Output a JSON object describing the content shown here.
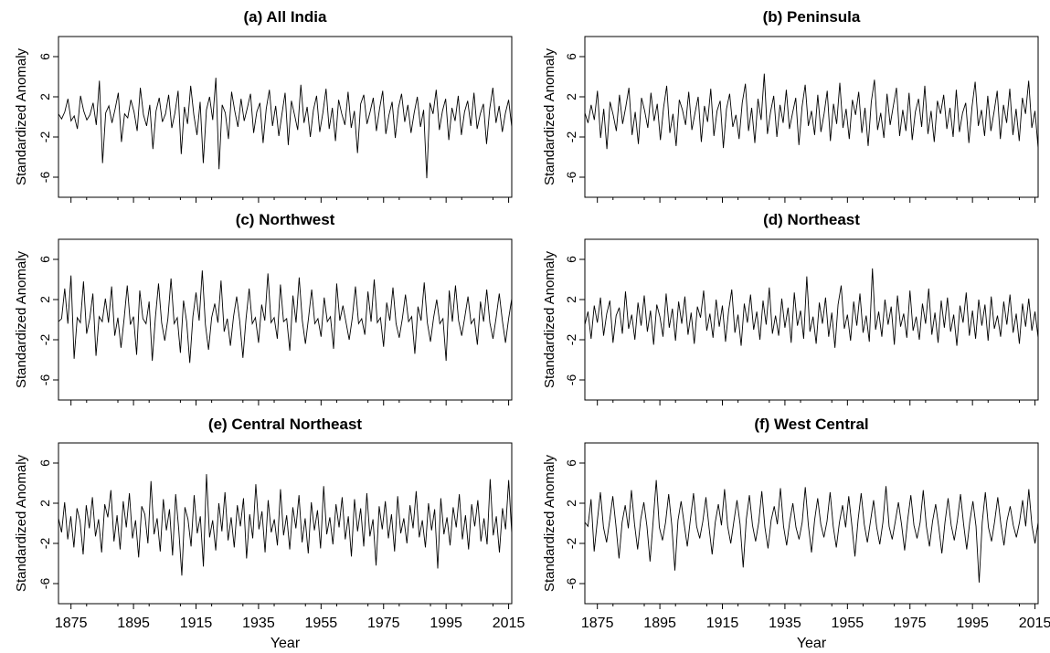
{
  "figure": {
    "xlabel": "Year",
    "ylabel": "Standardized Anomaly",
    "x_ticks": [
      1875,
      1895,
      1915,
      1935,
      1955,
      1975,
      1995,
      2015
    ],
    "y_ticks": [
      -6,
      -2,
      2,
      6
    ],
    "y_tick_labels": [
      "-6",
      "-2",
      "2",
      "6"
    ],
    "line_color": "#000000",
    "background": "#ffffff"
  },
  "chart_data": [
    {
      "type": "line",
      "title": "(a) All India",
      "xlabel": "",
      "ylabel": "Standardized Anomaly",
      "xlim": [
        1871,
        2016
      ],
      "ylim": [
        -8,
        8
      ],
      "grid": false,
      "x_ticks": [
        1875,
        1895,
        1915,
        1935,
        1955,
        1975,
        1995,
        2015
      ],
      "y_ticks": [
        -6,
        -2,
        2,
        6
      ],
      "series": [
        {
          "start": 1871,
          "end": 2016,
          "step_months": 1,
          "values": [
            0.3,
            -0.2,
            0.5,
            1.8,
            -0.4,
            0.1,
            -1.2,
            2.1,
            0.6,
            -0.3,
            0.2,
            1.4,
            -0.8,
            3.6,
            -4.6,
            0.4,
            1.1,
            -0.6,
            0.8,
            2.4,
            -2.5,
            0.3,
            -0.1,
            1.7,
            0.5,
            -1.4,
            2.9,
            0.2,
            -0.9,
            1.2,
            -3.2,
            0.6,
            1.9,
            -0.5,
            0.3,
            2.2,
            -1.1,
            0.4,
            2.6,
            -3.7,
            1.0,
            -0.7,
            3.1,
            0.2,
            -1.8,
            1.5,
            -4.6,
            0.7,
            2.0,
            -0.3,
            3.9,
            -5.2,
            1.2,
            0.4,
            -2.2,
            2.5,
            0.6,
            -1.0,
            1.8,
            -0.4,
            0.9,
            2.3,
            -1.6,
            0.5,
            1.4,
            -2.6,
            0.8,
            2.7,
            -0.9,
            1.1,
            -1.9,
            0.3,
            2.4,
            -2.8,
            1.6,
            0.2,
            -1.3,
            3.2,
            -0.6,
            1.0,
            -2.0,
            0.7,
            2.1,
            -1.5,
            0.4,
            2.8,
            -1.2,
            0.9,
            -2.4,
            1.7,
            0.3,
            -0.8,
            2.5,
            -1.1,
            0.6,
            -3.6,
            1.3,
            2.2,
            -0.7,
            0.5,
            1.9,
            -1.4,
            0.8,
            2.6,
            -1.7,
            0.2,
            1.5,
            -2.1,
            0.9,
            2.3,
            -0.5,
            1.2,
            -1.6,
            0.4,
            2.0,
            -1.0,
            0.7,
            -6.1,
            1.4,
            0.3,
            2.7,
            -1.3,
            0.6,
            1.8,
            -2.3,
            0.9,
            -0.4,
            2.1,
            -1.8,
            0.5,
            1.6,
            -0.9,
            2.4,
            -1.2,
            0.3,
            1.3,
            -2.7,
            0.8,
            2.9,
            -0.6,
            1.1,
            -1.5,
            0.4,
            1.7,
            -1.0
          ]
        }
      ]
    },
    {
      "type": "line",
      "title": "(b) Peninsula",
      "xlabel": "",
      "ylabel": "Standardized Anomaly",
      "xlim": [
        1871,
        2016
      ],
      "ylim": [
        -8,
        8
      ],
      "grid": false,
      "x_ticks": [
        1875,
        1895,
        1915,
        1935,
        1955,
        1975,
        1995,
        2015
      ],
      "y_ticks": [
        -6,
        -2,
        2,
        6
      ],
      "series": [
        {
          "start": 1871,
          "end": 2016,
          "step_months": 1,
          "values": [
            0.4,
            -0.6,
            1.2,
            -0.3,
            2.6,
            -2.1,
            0.8,
            -3.2,
            1.5,
            0.2,
            -1.4,
            2.2,
            -0.7,
            1.0,
            2.9,
            -1.8,
            0.5,
            -2.7,
            1.9,
            0.6,
            -1.1,
            2.4,
            -0.4,
            1.3,
            -2.3,
            0.9,
            3.1,
            -1.6,
            0.3,
            -2.9,
            1.7,
            0.7,
            -0.8,
            2.5,
            -1.3,
            0.4,
            2.0,
            -2.5,
            1.1,
            -0.5,
            2.8,
            -1.9,
            0.6,
            1.6,
            -3.1,
            0.8,
            2.3,
            -1.0,
            0.2,
            -2.2,
            1.4,
            3.3,
            -1.4,
            0.9,
            -2.6,
            1.8,
            -0.3,
            4.3,
            -1.7,
            0.5,
            2.1,
            -2.0,
            1.2,
            -0.6,
            2.7,
            -1.2,
            0.4,
            1.9,
            -2.8,
            1.0,
            3.2,
            -0.9,
            0.6,
            -1.8,
            2.2,
            -1.5,
            0.3,
            2.6,
            -2.4,
            1.3,
            -0.7,
            3.4,
            -1.1,
            0.8,
            -2.2,
            1.7,
            0.2,
            2.5,
            -1.6,
            0.9,
            -2.9,
            1.5,
            3.7,
            -1.3,
            0.4,
            -2.1,
            2.3,
            -0.8,
            1.1,
            2.9,
            -1.9,
            0.7,
            -1.4,
            2.4,
            -2.3,
            0.5,
            1.8,
            -1.0,
            3.1,
            -1.7,
            0.6,
            -2.5,
            1.6,
            0.3,
            2.2,
            -1.2,
            0.9,
            -2.0,
            2.7,
            -1.5,
            0.4,
            1.4,
            -2.6,
            1.0,
            3.5,
            -0.9,
            0.7,
            -1.9,
            2.1,
            -1.4,
            0.5,
            2.6,
            -2.2,
            1.2,
            -0.6,
            2.8,
            -1.8,
            0.8,
            -2.4,
            1.9,
            0.3,
            3.6,
            -1.1,
            0.6,
            -3.1
          ]
        }
      ]
    },
    {
      "type": "line",
      "title": "(c) Northwest",
      "xlabel": "",
      "ylabel": "Standardized Anomaly",
      "xlim": [
        1871,
        2016
      ],
      "ylim": [
        -8,
        8
      ],
      "grid": false,
      "x_ticks": [
        1875,
        1895,
        1915,
        1935,
        1955,
        1975,
        1995,
        2015
      ],
      "y_ticks": [
        -6,
        -2,
        2,
        6
      ],
      "series": [
        {
          "start": 1871,
          "end": 2016,
          "step_months": 1,
          "values": [
            -0.2,
            0.1,
            3.1,
            -0.4,
            4.4,
            -3.9,
            0.2,
            -0.3,
            3.8,
            -1.4,
            0.1,
            2.6,
            -3.6,
            0.3,
            -0.2,
            2.1,
            -0.3,
            3.3,
            -1.6,
            0.2,
            -2.8,
            0.1,
            3.4,
            -0.5,
            0.3,
            -3.5,
            2.9,
            0.1,
            -0.4,
            1.8,
            -4.1,
            0.2,
            3.6,
            -0.3,
            -2.1,
            0.1,
            4.1,
            -0.4,
            0.2,
            -3.3,
            1.9,
            -0.2,
            -4.3,
            0.3,
            2.7,
            -0.1,
            4.9,
            -0.5,
            -3.0,
            0.2,
            1.6,
            -0.3,
            3.9,
            -1.2,
            0.1,
            -2.6,
            0.3,
            2.3,
            -0.2,
            -3.8,
            0.1,
            3.1,
            -0.4,
            0.2,
            -2.3,
            1.5,
            -0.1,
            4.6,
            -0.3,
            0.2,
            -1.9,
            3.5,
            -0.2,
            0.1,
            -3.1,
            2.4,
            -0.3,
            4.2,
            -0.1,
            -2.4,
            0.2,
            3.0,
            -0.4,
            0.1,
            -1.7,
            2.2,
            -0.2,
            0.3,
            -2.9,
            3.6,
            -0.1,
            1.4,
            -0.3,
            -2.0,
            0.2,
            3.3,
            -0.4,
            0.1,
            -1.5,
            2.8,
            -0.2,
            4.0,
            -0.3,
            0.2,
            -2.7,
            1.7,
            -0.1,
            3.2,
            -0.4,
            -1.8,
            0.1,
            2.5,
            -0.2,
            0.3,
            -3.4,
            1.3,
            -0.1,
            3.7,
            -0.3,
            -2.2,
            0.2,
            2.0,
            -0.4,
            0.1,
            -4.1,
            2.9,
            -0.2,
            3.4,
            -0.1,
            -1.6,
            0.3,
            2.3,
            -0.4,
            0.1,
            -2.5,
            1.8,
            -0.2,
            3.0,
            -0.3,
            -1.9,
            0.2,
            2.6,
            -0.1,
            -2.3,
            0.1,
            2.1
          ]
        }
      ]
    },
    {
      "type": "line",
      "title": "(d) Northeast",
      "xlabel": "",
      "ylabel": "Standardized Anomaly",
      "xlim": [
        1871,
        2016
      ],
      "ylim": [
        -8,
        8
      ],
      "grid": false,
      "x_ticks": [
        1875,
        1895,
        1915,
        1935,
        1955,
        1975,
        1995,
        2015
      ],
      "y_ticks": [
        -6,
        -2,
        2,
        6
      ],
      "series": [
        {
          "start": 1871,
          "end": 2016,
          "step_months": 1,
          "values": [
            -0.5,
            0.8,
            -1.9,
            1.4,
            -0.3,
            2.2,
            -1.6,
            0.6,
            1.9,
            -2.3,
            0.4,
            1.2,
            -1.4,
            2.8,
            -0.9,
            0.5,
            -2.0,
            1.7,
            -0.6,
            2.4,
            -1.2,
            0.9,
            -2.5,
            1.5,
            0.3,
            -1.7,
            2.6,
            -0.8,
            1.1,
            -2.1,
            1.8,
            -0.4,
            2.3,
            -1.5,
            0.7,
            -2.4,
            1.3,
            0.2,
            2.9,
            -1.1,
            0.6,
            -1.8,
            2.0,
            -0.7,
            1.4,
            -2.2,
            0.9,
            3.0,
            -1.3,
            0.5,
            -2.6,
            1.6,
            -0.3,
            2.5,
            -1.0,
            0.8,
            -2.0,
            1.9,
            -0.5,
            3.2,
            -1.4,
            0.4,
            -1.6,
            2.1,
            -0.8,
            1.2,
            -2.3,
            2.7,
            -0.6,
            0.9,
            -1.9,
            4.3,
            -1.2,
            0.3,
            -2.4,
            1.7,
            -0.4,
            2.2,
            -1.7,
            0.7,
            -2.8,
            1.5,
            3.4,
            -0.9,
            0.5,
            -2.1,
            1.8,
            -0.6,
            2.6,
            -1.3,
            0.4,
            -2.2,
            5.1,
            -1.0,
            0.8,
            -1.7,
            2.0,
            -0.5,
            1.3,
            -2.5,
            2.4,
            -0.7,
            0.6,
            -1.8,
            2.9,
            -1.1,
            0.3,
            -2.0,
            1.6,
            -0.4,
            3.1,
            -1.5,
            0.7,
            -2.3,
            1.9,
            -0.8,
            2.2,
            -1.2,
            0.5,
            -2.6,
            1.4,
            -0.3,
            2.7,
            -1.6,
            0.9,
            -1.9,
            2.0,
            -0.6,
            1.5,
            -2.1,
            2.3,
            -0.9,
            0.4,
            -1.7,
            1.8,
            -0.5,
            2.5,
            -1.3,
            0.6,
            -2.4,
            1.6,
            -0.7,
            2.1,
            -1.1,
            0.8,
            -1.8
          ]
        }
      ]
    },
    {
      "type": "line",
      "title": "(e) Central Northeast",
      "xlabel": "Year",
      "ylabel": "Standardized Anomaly",
      "xlim": [
        1871,
        2016
      ],
      "ylim": [
        -8,
        8
      ],
      "grid": false,
      "x_ticks": [
        1875,
        1895,
        1915,
        1935,
        1955,
        1975,
        1995,
        2015
      ],
      "y_ticks": [
        -6,
        -2,
        2,
        6
      ],
      "series": [
        {
          "start": 1871,
          "end": 2016,
          "step_months": 1,
          "values": [
            0.5,
            -0.9,
            2.1,
            -1.6,
            0.7,
            -2.4,
            1.5,
            0.2,
            -3.1,
            1.8,
            -0.5,
            2.6,
            -1.3,
            0.4,
            -2.9,
            1.9,
            0.6,
            3.3,
            -1.8,
            0.8,
            -2.6,
            2.2,
            -0.4,
            3.0,
            -1.5,
            0.3,
            -3.4,
            1.7,
            0.9,
            -2.0,
            4.2,
            -1.1,
            0.5,
            -2.8,
            2.4,
            -0.7,
            1.4,
            -3.2,
            2.9,
            -0.6,
            -5.2,
            1.6,
            0.4,
            -2.3,
            2.8,
            -1.0,
            0.7,
            -4.3,
            4.9,
            -1.4,
            0.3,
            -2.7,
            2.0,
            -0.8,
            3.1,
            -1.7,
            0.6,
            -2.4,
            1.8,
            -0.3,
            2.5,
            -3.5,
            0.9,
            -1.5,
            3.9,
            -0.6,
            1.2,
            -2.9,
            2.3,
            -0.9,
            0.4,
            -2.2,
            3.4,
            -1.2,
            0.8,
            -2.6,
            1.6,
            -0.5,
            2.8,
            -1.9,
            0.5,
            -3.0,
            2.1,
            -0.7,
            1.3,
            -2.5,
            3.7,
            -1.1,
            0.6,
            -2.1,
            1.9,
            -0.4,
            2.6,
            -1.6,
            0.7,
            -3.3,
            2.4,
            -0.8,
            1.5,
            -2.3,
            3.0,
            -1.3,
            0.4,
            -4.2,
            1.7,
            -0.6,
            2.2,
            -1.5,
            0.9,
            -2.8,
            2.7,
            -1.0,
            0.5,
            -2.0,
            1.8,
            -0.5,
            3.2,
            -1.4,
            0.3,
            -2.4,
            2.0,
            -0.7,
            1.4,
            -4.5,
            2.5,
            -1.1,
            0.6,
            -2.2,
            1.6,
            -0.4,
            2.9,
            -1.6,
            0.8,
            -2.6,
            1.9,
            -0.3,
            2.3,
            -1.8,
            0.5,
            -2.1,
            4.4,
            -1.2,
            0.7,
            -2.9,
            1.5,
            -0.6,
            4.3,
            -1.0
          ]
        }
      ]
    },
    {
      "type": "line",
      "title": "(f) West Central",
      "xlabel": "Year",
      "ylabel": "Standardized Anomaly",
      "xlim": [
        1871,
        2016
      ],
      "ylim": [
        -8,
        8
      ],
      "grid": false,
      "x_ticks": [
        1875,
        1895,
        1915,
        1935,
        1955,
        1975,
        1995,
        2015
      ],
      "y_ticks": [
        -6,
        -2,
        2,
        6
      ],
      "series": [
        {
          "start": 1871,
          "end": 2016,
          "step_months": 1,
          "values": [
            0.1,
            -0.3,
            2.4,
            -2.8,
            0.2,
            3.1,
            -0.4,
            -1.9,
            0.3,
            2.7,
            -0.2,
            -3.5,
            0.1,
            1.8,
            -0.5,
            3.3,
            -0.1,
            -2.6,
            0.4,
            2.1,
            -0.3,
            -3.8,
            0.2,
            4.3,
            -0.4,
            -1.7,
            0.1,
            2.9,
            -0.2,
            -4.7,
            0.3,
            2.2,
            -0.1,
            -2.3,
            0.4,
            3.0,
            -0.3,
            -1.5,
            0.2,
            2.6,
            -0.4,
            -3.1,
            0.1,
            1.9,
            -0.2,
            3.4,
            -0.3,
            -2.0,
            0.2,
            2.3,
            -0.1,
            -4.4,
            0.4,
            2.8,
            -0.2,
            -1.8,
            0.1,
            3.2,
            -0.4,
            -2.5,
            0.3,
            1.7,
            -0.1,
            3.5,
            -0.3,
            -2.2,
            0.2,
            2.0,
            -0.4,
            -1.6,
            0.1,
            3.6,
            -0.2,
            -2.9,
            0.3,
            2.5,
            -0.1,
            -1.4,
            0.2,
            3.1,
            -0.3,
            -2.4,
            0.1,
            1.8,
            -0.4,
            2.7,
            -0.2,
            -3.3,
            0.3,
            3.0,
            -0.1,
            -1.9,
            0.2,
            2.3,
            -0.4,
            -2.1,
            0.1,
            3.7,
            -0.3,
            -1.6,
            0.2,
            2.1,
            -0.1,
            -2.7,
            0.4,
            2.8,
            -0.2,
            -1.5,
            0.1,
            3.3,
            -0.3,
            -2.3,
            0.2,
            1.9,
            -0.4,
            -3.0,
            0.1,
            2.5,
            -0.2,
            -1.7,
            0.3,
            2.9,
            -0.1,
            -2.6,
            0.2,
            2.2,
            -0.3,
            -5.9,
            0.1,
            3.1,
            -0.4,
            -1.8,
            0.2,
            2.6,
            -0.1,
            -2.2,
            0.3,
            1.7,
            -0.2,
            -1.4,
            0.1,
            2.3,
            -0.3,
            3.4,
            -0.2,
            -2.0,
            0.1
          ]
        }
      ]
    }
  ]
}
